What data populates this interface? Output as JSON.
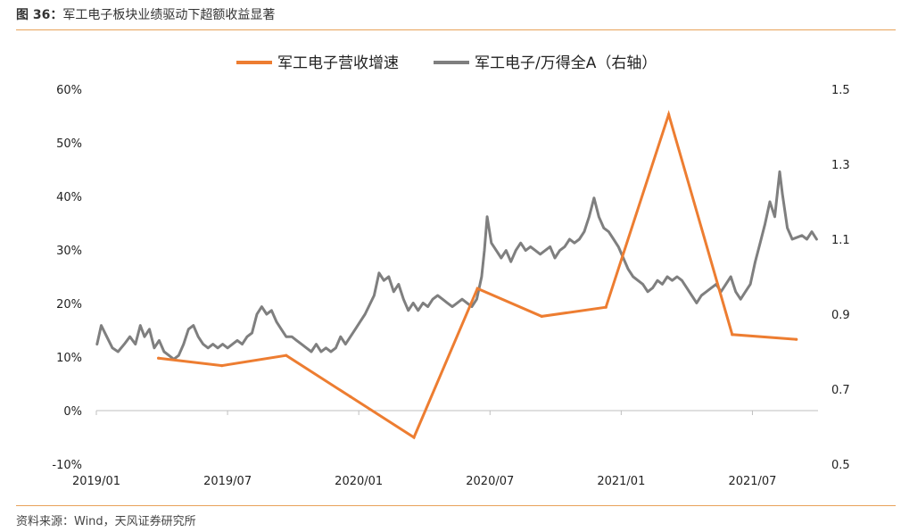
{
  "header": {
    "figure_number": "图 36：",
    "title": "军工电子板块业绩驱动下超额收益显著"
  },
  "footer": {
    "source": "资料来源：Wind，天风证券研究所"
  },
  "colors": {
    "accent_rule": "#e8a25a",
    "growth_line": "#ed7d31",
    "ratio_line": "#7f7f7f"
  },
  "chart_data": {
    "type": "line",
    "legend_position": "top",
    "grid": false,
    "x_tick_labels": [
      "2019/01",
      "2019/07",
      "2020/01",
      "2020/07",
      "2021/01",
      "2021/07"
    ],
    "x_range": [
      "2019-01-01",
      "2021-10-31"
    ],
    "y_left": {
      "ticks": [
        "60%",
        "50%",
        "40%",
        "30%",
        "20%",
        "10%",
        "0%",
        "-10%"
      ],
      "ylim": [
        -10,
        60
      ]
    },
    "y_right": {
      "ticks": [
        "1.5",
        "1.3",
        "1.1",
        "0.9",
        "0.7",
        "0.5"
      ],
      "ylim": [
        0.5,
        1.5
      ]
    },
    "series": [
      {
        "name": "军工电子营收增速",
        "axis": "left",
        "points": [
          [
            "2019-03-31",
            9.8
          ],
          [
            "2019-06-30",
            8.4
          ],
          [
            "2019-09-30",
            10.3
          ],
          [
            "2019-12-31",
            2.6
          ],
          [
            "2020-03-31",
            -5.0
          ],
          [
            "2020-06-30",
            22.8
          ],
          [
            "2020-09-30",
            17.6
          ],
          [
            "2020-12-31",
            19.3
          ],
          [
            "2021-03-31",
            55.3
          ],
          [
            "2021-06-30",
            14.2
          ],
          [
            "2021-09-30",
            13.3
          ]
        ]
      },
      {
        "name": "军工电子/万得全A（右轴）",
        "axis": "right",
        "points": [
          [
            "2019-01-02",
            0.82
          ],
          [
            "2019-01-08",
            0.87
          ],
          [
            "2019-01-16",
            0.84
          ],
          [
            "2019-01-24",
            0.81
          ],
          [
            "2019-02-01",
            0.8
          ],
          [
            "2019-02-10",
            0.82
          ],
          [
            "2019-02-18",
            0.84
          ],
          [
            "2019-02-26",
            0.82
          ],
          [
            "2019-03-05",
            0.87
          ],
          [
            "2019-03-11",
            0.84
          ],
          [
            "2019-03-18",
            0.86
          ],
          [
            "2019-03-25",
            0.81
          ],
          [
            "2019-04-01",
            0.83
          ],
          [
            "2019-04-08",
            0.8
          ],
          [
            "2019-04-15",
            0.79
          ],
          [
            "2019-04-22",
            0.78
          ],
          [
            "2019-04-29",
            0.79
          ],
          [
            "2019-05-06",
            0.82
          ],
          [
            "2019-05-13",
            0.86
          ],
          [
            "2019-05-20",
            0.87
          ],
          [
            "2019-05-27",
            0.84
          ],
          [
            "2019-06-03",
            0.82
          ],
          [
            "2019-06-10",
            0.81
          ],
          [
            "2019-06-17",
            0.82
          ],
          [
            "2019-06-24",
            0.81
          ],
          [
            "2019-07-01",
            0.82
          ],
          [
            "2019-07-08",
            0.81
          ],
          [
            "2019-07-15",
            0.82
          ],
          [
            "2019-07-22",
            0.83
          ],
          [
            "2019-07-29",
            0.82
          ],
          [
            "2019-08-05",
            0.84
          ],
          [
            "2019-08-12",
            0.85
          ],
          [
            "2019-08-19",
            0.9
          ],
          [
            "2019-08-26",
            0.92
          ],
          [
            "2019-09-02",
            0.9
          ],
          [
            "2019-09-09",
            0.91
          ],
          [
            "2019-09-16",
            0.88
          ],
          [
            "2019-09-23",
            0.86
          ],
          [
            "2019-09-30",
            0.84
          ],
          [
            "2019-10-08",
            0.84
          ],
          [
            "2019-10-15",
            0.83
          ],
          [
            "2019-10-22",
            0.82
          ],
          [
            "2019-10-29",
            0.81
          ],
          [
            "2019-11-05",
            0.8
          ],
          [
            "2019-11-12",
            0.82
          ],
          [
            "2019-11-19",
            0.8
          ],
          [
            "2019-11-26",
            0.81
          ],
          [
            "2019-12-03",
            0.8
          ],
          [
            "2019-12-10",
            0.81
          ],
          [
            "2019-12-17",
            0.84
          ],
          [
            "2019-12-24",
            0.82
          ],
          [
            "2019-12-31",
            0.84
          ],
          [
            "2020-01-07",
            0.86
          ],
          [
            "2020-01-14",
            0.88
          ],
          [
            "2020-01-21",
            0.9
          ],
          [
            "2020-02-03",
            0.95
          ],
          [
            "2020-02-10",
            1.01
          ],
          [
            "2020-02-17",
            0.99
          ],
          [
            "2020-02-24",
            1.0
          ],
          [
            "2020-03-02",
            0.96
          ],
          [
            "2020-03-09",
            0.98
          ],
          [
            "2020-03-16",
            0.94
          ],
          [
            "2020-03-23",
            0.91
          ],
          [
            "2020-03-30",
            0.93
          ],
          [
            "2020-04-06",
            0.91
          ],
          [
            "2020-04-13",
            0.93
          ],
          [
            "2020-04-20",
            0.92
          ],
          [
            "2020-04-27",
            0.94
          ],
          [
            "2020-05-04",
            0.95
          ],
          [
            "2020-05-11",
            0.94
          ],
          [
            "2020-05-18",
            0.93
          ],
          [
            "2020-05-25",
            0.92
          ],
          [
            "2020-06-01",
            0.93
          ],
          [
            "2020-06-08",
            0.94
          ],
          [
            "2020-06-15",
            0.93
          ],
          [
            "2020-06-22",
            0.92
          ],
          [
            "2020-06-29",
            0.94
          ],
          [
            "2020-07-06",
            1.0
          ],
          [
            "2020-07-10",
            1.07
          ],
          [
            "2020-07-14",
            1.16
          ],
          [
            "2020-07-20",
            1.09
          ],
          [
            "2020-07-27",
            1.07
          ],
          [
            "2020-08-03",
            1.05
          ],
          [
            "2020-08-10",
            1.07
          ],
          [
            "2020-08-17",
            1.04
          ],
          [
            "2020-08-24",
            1.07
          ],
          [
            "2020-08-31",
            1.09
          ],
          [
            "2020-09-07",
            1.07
          ],
          [
            "2020-09-14",
            1.08
          ],
          [
            "2020-09-21",
            1.07
          ],
          [
            "2020-09-28",
            1.06
          ],
          [
            "2020-10-12",
            1.08
          ],
          [
            "2020-10-19",
            1.05
          ],
          [
            "2020-10-26",
            1.07
          ],
          [
            "2020-11-02",
            1.08
          ],
          [
            "2020-11-09",
            1.1
          ],
          [
            "2020-11-16",
            1.09
          ],
          [
            "2020-11-23",
            1.1
          ],
          [
            "2020-11-30",
            1.12
          ],
          [
            "2020-12-07",
            1.16
          ],
          [
            "2020-12-14",
            1.21
          ],
          [
            "2020-12-21",
            1.16
          ],
          [
            "2020-12-28",
            1.13
          ],
          [
            "2021-01-04",
            1.12
          ],
          [
            "2021-01-11",
            1.1
          ],
          [
            "2021-01-18",
            1.08
          ],
          [
            "2021-01-25",
            1.05
          ],
          [
            "2021-02-01",
            1.02
          ],
          [
            "2021-02-08",
            1.0
          ],
          [
            "2021-02-22",
            0.98
          ],
          [
            "2021-03-01",
            0.96
          ],
          [
            "2021-03-08",
            0.97
          ],
          [
            "2021-03-15",
            0.99
          ],
          [
            "2021-03-22",
            0.98
          ],
          [
            "2021-03-29",
            1.0
          ],
          [
            "2021-04-05",
            0.99
          ],
          [
            "2021-04-12",
            1.0
          ],
          [
            "2021-04-19",
            0.99
          ],
          [
            "2021-04-26",
            0.97
          ],
          [
            "2021-05-03",
            0.95
          ],
          [
            "2021-05-10",
            0.93
          ],
          [
            "2021-05-17",
            0.95
          ],
          [
            "2021-05-24",
            0.96
          ],
          [
            "2021-05-31",
            0.97
          ],
          [
            "2021-06-07",
            0.98
          ],
          [
            "2021-06-14",
            0.96
          ],
          [
            "2021-06-21",
            0.98
          ],
          [
            "2021-06-28",
            1.0
          ],
          [
            "2021-07-05",
            0.96
          ],
          [
            "2021-07-12",
            0.94
          ],
          [
            "2021-07-19",
            0.96
          ],
          [
            "2021-07-26",
            0.98
          ],
          [
            "2021-08-02",
            1.04
          ],
          [
            "2021-08-09",
            1.09
          ],
          [
            "2021-08-16",
            1.14
          ],
          [
            "2021-08-23",
            1.2
          ],
          [
            "2021-08-30",
            1.16
          ],
          [
            "2021-09-06",
            1.28
          ],
          [
            "2021-09-10",
            1.22
          ],
          [
            "2021-09-17",
            1.13
          ],
          [
            "2021-09-24",
            1.1
          ],
          [
            "2021-10-08",
            1.11
          ],
          [
            "2021-10-15",
            1.1
          ],
          [
            "2021-10-22",
            1.12
          ],
          [
            "2021-10-29",
            1.1
          ]
        ]
      }
    ]
  }
}
